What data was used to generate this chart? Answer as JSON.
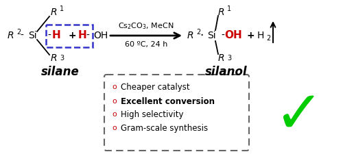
{
  "fig_width": 5.0,
  "fig_height": 2.25,
  "dpi": 100,
  "bg_color": "#ffffff",
  "text_color": "#000000",
  "red_color": "#cc0000",
  "blue_dashed_color": "#3333cc",
  "green_color": "#00cc00",
  "box_color": "#666666",
  "bullet_items": [
    "Cheaper catalyst",
    "Excellent conversion",
    "High selectivity",
    "Gram-scale synthesis"
  ],
  "bullet_bold": [
    false,
    true,
    false,
    false
  ],
  "catalyst_text": "Cs$_2$CO$_3$, MeCN",
  "condition_text": "60 ºC, 24 h"
}
